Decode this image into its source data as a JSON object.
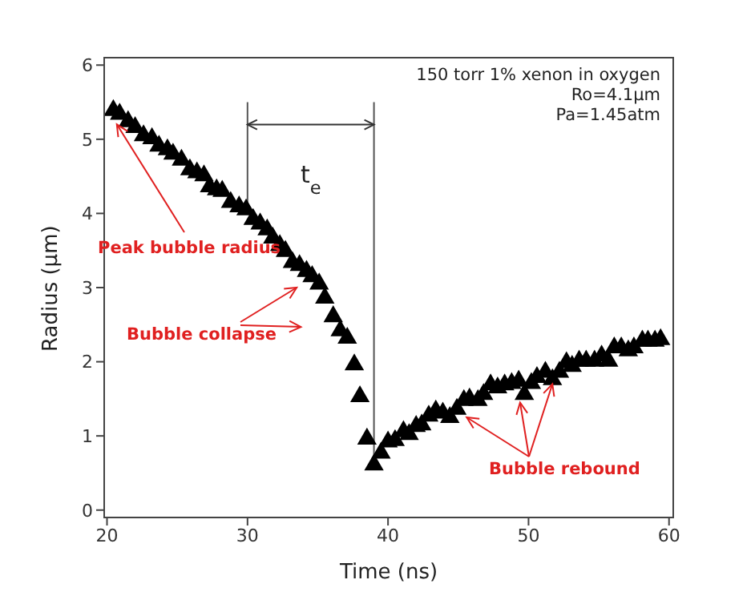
{
  "chart_data": {
    "type": "scatter",
    "xlabel": "Time (ns)",
    "ylabel": "Radius (μm)",
    "x": [
      20.45,
      20.9,
      21.5,
      22.0,
      22.6,
      23.2,
      23.7,
      24.3,
      24.7,
      25.3,
      25.9,
      26.4,
      26.9,
      27.3,
      27.8,
      28.2,
      28.8,
      29.4,
      29.9,
      30.4,
      30.9,
      31.4,
      31.8,
      32.3,
      32.7,
      33.2,
      33.7,
      34.2,
      34.6,
      35.1,
      35.5,
      36.1,
      36.6,
      37.1,
      37.6,
      38.0,
      38.5,
      39.0,
      39.5,
      40.0,
      40.5,
      41.1,
      41.5,
      42.0,
      42.4,
      42.9,
      43.4,
      43.9,
      44.4,
      44.9,
      45.4,
      45.8,
      46.4,
      46.8,
      47.3,
      47.8,
      48.3,
      48.8,
      49.3,
      49.7,
      50.2,
      50.6,
      51.2,
      51.7,
      52.2,
      52.7,
      53.1,
      53.6,
      54.1,
      54.7,
      55.2,
      55.7,
      56.1,
      56.6,
      57.1,
      57.5,
      58.1,
      58.5,
      59.0,
      59.4
    ],
    "values": [
      5.39,
      5.34,
      5.24,
      5.16,
      5.05,
      5.01,
      4.91,
      4.86,
      4.8,
      4.72,
      4.59,
      4.55,
      4.51,
      4.36,
      4.32,
      4.3,
      4.15,
      4.09,
      4.05,
      3.92,
      3.86,
      3.78,
      3.67,
      3.57,
      3.49,
      3.34,
      3.3,
      3.22,
      3.15,
      3.05,
      2.86,
      2.61,
      2.42,
      2.32,
      1.96,
      1.53,
      0.96,
      0.61,
      0.77,
      0.92,
      0.94,
      1.06,
      1.02,
      1.13,
      1.15,
      1.27,
      1.34,
      1.31,
      1.25,
      1.36,
      1.48,
      1.5,
      1.48,
      1.56,
      1.69,
      1.65,
      1.69,
      1.71,
      1.74,
      1.56,
      1.71,
      1.79,
      1.86,
      1.76,
      1.86,
      1.99,
      1.94,
      2.01,
      2.01,
      2.01,
      2.08,
      2.01,
      2.19,
      2.19,
      2.15,
      2.19,
      2.28,
      2.28,
      2.28,
      2.3
    ],
    "color": "#000000",
    "marker": "triangle",
    "grid": false,
    "xlim": [
      19.8,
      60.3
    ],
    "xticks": [
      20,
      30,
      40,
      50,
      60
    ],
    "ylim": [
      -0.1,
      6.1
    ],
    "yticks": [
      0,
      1,
      2,
      3,
      4,
      5,
      6
    ],
    "ref_lines": [
      {
        "axis": "x",
        "value": 30,
        "label": "t$_{e}$",
        "color": "#555555"
      },
      {
        "axis": "x",
        "value": 39,
        "color": "#555555"
      }
    ],
    "annotations": [
      "150 torr 1% xenon in oxygen",
      "Ro=4.1μm",
      "Pa=1.45atm",
      {
        "text": "Peak bubble radius",
        "x": 20.7,
        "y": 5.2
      },
      {
        "text": "Bubble collapse",
        "x": 33.5,
        "y": 3.0
      },
      {
        "text": "Bubble rebound",
        "x": 45.6,
        "y": 1.25
      }
    ]
  }
}
